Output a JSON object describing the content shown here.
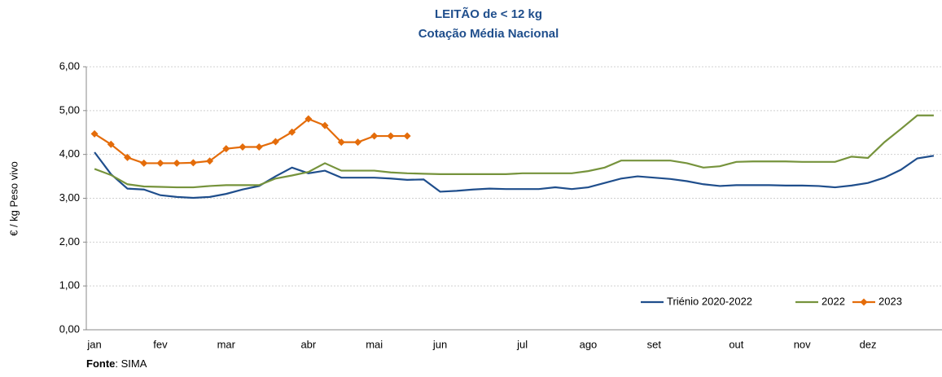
{
  "chart_data": {
    "type": "line",
    "title": "LEITÃO de < 12 kg",
    "subtitle": "Cotação Média Nacional",
    "y_label": "€ / kg Peso vivo",
    "source_label": "Fonte",
    "source": ": SIMA",
    "categories": [
      "jan",
      null,
      null,
      null,
      "fev",
      null,
      null,
      null,
      "mar",
      null,
      null,
      null,
      null,
      "abr",
      null,
      null,
      null,
      "mai",
      null,
      null,
      null,
      "jun",
      null,
      null,
      null,
      null,
      "jul",
      null,
      null,
      null,
      "ago",
      null,
      null,
      null,
      "set",
      null,
      null,
      null,
      null,
      "out",
      null,
      null,
      null,
      "nov",
      null,
      null,
      null,
      "dez",
      null,
      null,
      null,
      null
    ],
    "ylim": [
      0,
      6
    ],
    "yticks": [
      {
        "value": 0,
        "label": "0,00"
      },
      {
        "value": 1,
        "label": "1,00"
      },
      {
        "value": 2,
        "label": "2,00"
      },
      {
        "value": 3,
        "label": "3,00"
      },
      {
        "value": 4,
        "label": "4,00"
      },
      {
        "value": 5,
        "label": "5,00"
      },
      {
        "value": 6,
        "label": "6,00"
      }
    ],
    "grid": true,
    "legend": "bottom-right",
    "series": [
      {
        "name": "Triénio 2020-2022",
        "color": "#1f4e8c",
        "marker": false,
        "values": [
          4.05,
          3.55,
          3.22,
          3.2,
          3.07,
          3.03,
          3.01,
          3.03,
          3.1,
          3.2,
          3.28,
          3.5,
          3.7,
          3.57,
          3.63,
          3.47,
          3.47,
          3.47,
          3.45,
          3.42,
          3.43,
          3.15,
          3.17,
          3.2,
          3.22,
          3.21,
          3.21,
          3.21,
          3.25,
          3.21,
          3.25,
          3.35,
          3.45,
          3.5,
          3.47,
          3.44,
          3.39,
          3.32,
          3.28,
          3.3,
          3.3,
          3.3,
          3.29,
          3.29,
          3.28,
          3.25,
          3.29,
          3.35,
          3.47,
          3.65,
          3.91,
          3.97
        ]
      },
      {
        "name": "2022",
        "color": "#76933c",
        "marker": false,
        "values": [
          3.67,
          3.53,
          3.32,
          3.27,
          3.26,
          3.25,
          3.25,
          3.28,
          3.3,
          3.3,
          3.3,
          3.45,
          3.52,
          3.6,
          3.8,
          3.63,
          3.63,
          3.63,
          3.59,
          3.57,
          3.56,
          3.55,
          3.55,
          3.55,
          3.55,
          3.55,
          3.57,
          3.57,
          3.57,
          3.57,
          3.62,
          3.7,
          3.86,
          3.86,
          3.86,
          3.86,
          3.8,
          3.7,
          3.73,
          3.83,
          3.84,
          3.84,
          3.84,
          3.83,
          3.83,
          3.83,
          3.95,
          3.92,
          4.28,
          4.58,
          4.89,
          4.89
        ]
      },
      {
        "name": "2023",
        "color": "#e46c0a",
        "marker": true,
        "values": [
          4.47,
          4.23,
          3.93,
          3.8,
          3.8,
          3.8,
          3.81,
          3.85,
          4.13,
          4.17,
          4.17,
          4.29,
          4.51,
          4.81,
          4.66,
          4.28,
          4.28,
          4.42,
          4.42,
          4.42,
          null,
          null,
          null,
          null,
          null,
          null,
          null,
          null,
          null,
          null,
          null,
          null,
          null,
          null,
          null,
          null,
          null,
          null,
          null,
          null,
          null,
          null,
          null,
          null,
          null,
          null,
          null,
          null,
          null,
          null,
          null,
          null
        ]
      }
    ]
  }
}
